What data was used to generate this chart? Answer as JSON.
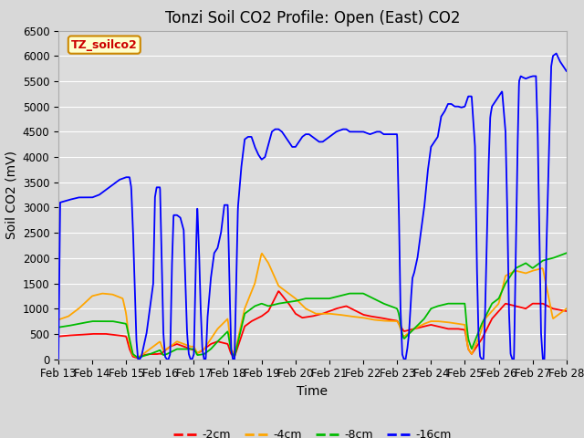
{
  "title": "Tonzi Soil CO2 Profile: Open (East) CO2",
  "ylabel": "Soil CO2 (mV)",
  "xlabel": "Time",
  "series_labels": [
    "-2cm",
    "-4cm",
    "-8cm",
    "-16cm"
  ],
  "series_colors": [
    "#ff0000",
    "#ffa500",
    "#00bb00",
    "#0000ff"
  ],
  "ylim": [
    0,
    6500
  ],
  "yticks": [
    0,
    500,
    1000,
    1500,
    2000,
    2500,
    3000,
    3500,
    4000,
    4500,
    5000,
    5500,
    6000,
    6500
  ],
  "xtick_labels": [
    "Feb 13",
    "Feb 14",
    "Feb 15",
    "Feb 16",
    "Feb 17",
    "Feb 18",
    "Feb 19",
    "Feb 20",
    "Feb 21",
    "Feb 22",
    "Feb 23",
    "Feb 24",
    "Feb 25",
    "Feb 26",
    "Feb 27",
    "Feb 28"
  ],
  "fig_bg": "#d8d8d8",
  "plot_bg": "#dcdcdc",
  "grid_color": "#ffffff",
  "title_fontsize": 12,
  "label_fontsize": 10,
  "tick_fontsize": 8.5
}
